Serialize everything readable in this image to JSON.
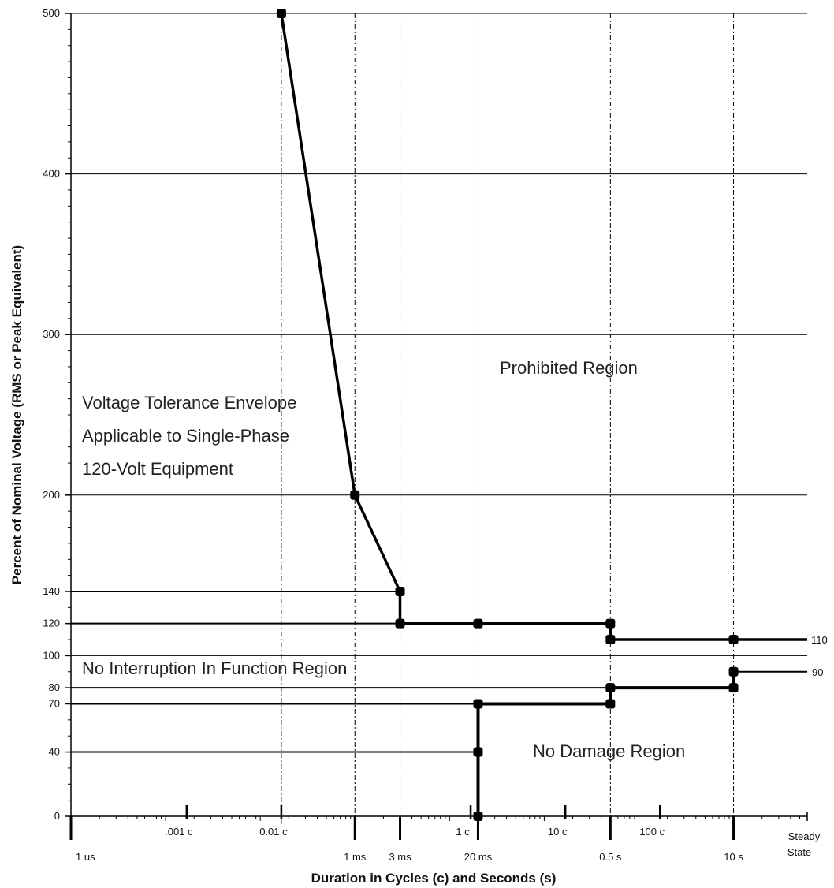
{
  "chart_data": {
    "type": "line",
    "title": "",
    "xlabel": "Duration in Cycles (c) and Seconds (s)",
    "ylabel": "Percent of Nominal Voltage (RMS or Peak Equivalent)",
    "x_scale": "log",
    "x_unit": "seconds",
    "xlim": [
      1e-06,
      60
    ],
    "ylim": [
      0,
      500
    ],
    "y_ticks": [
      0,
      40,
      70,
      80,
      100,
      120,
      140,
      200,
      300,
      400,
      500
    ],
    "y_gridlines": [
      100,
      200,
      300,
      400,
      500
    ],
    "x_ticks_top": [
      {
        "label": ".001 c",
        "x": 1.67e-05
      },
      {
        "label": "0.01 c",
        "x": 0.000167
      },
      {
        "label": "1 c",
        "x": 0.0167
      },
      {
        "label": "10 c",
        "x": 0.167
      },
      {
        "label": "100 c",
        "x": 1.67
      }
    ],
    "x_ticks_bottom": [
      {
        "label": "1 us",
        "x": 1e-06
      },
      {
        "label": "1 ms",
        "x": 0.001
      },
      {
        "label": "3 ms",
        "x": 0.003
      },
      {
        "label": "20 ms",
        "x": 0.02
      },
      {
        "label": "0.5 s",
        "x": 0.5
      },
      {
        "label": "10 s",
        "x": 10
      }
    ],
    "steady_state_label": [
      "Steady",
      "State"
    ],
    "series": [
      {
        "key": "upper",
        "points": [
          [
            0.000167,
            500
          ],
          [
            0.001,
            200
          ],
          [
            0.003,
            140
          ],
          [
            0.003,
            120
          ],
          [
            0.02,
            120
          ],
          [
            0.5,
            120
          ],
          [
            0.5,
            110
          ],
          [
            10,
            110
          ],
          [
            60,
            110
          ]
        ],
        "markers": [
          [
            0.000167,
            500
          ],
          [
            0.001,
            200
          ],
          [
            0.003,
            140
          ],
          [
            0.003,
            120
          ],
          [
            0.02,
            120
          ],
          [
            0.5,
            120
          ],
          [
            0.5,
            110
          ],
          [
            10,
            110
          ]
        ]
      },
      {
        "key": "lower",
        "points": [
          [
            0.02,
            0
          ],
          [
            0.02,
            40
          ],
          [
            0.02,
            70
          ],
          [
            0.5,
            70
          ],
          [
            0.5,
            80
          ],
          [
            10,
            80
          ],
          [
            10,
            90
          ]
        ],
        "markers": [
          [
            0.02,
            0
          ],
          [
            0.02,
            40
          ],
          [
            0.02,
            70
          ],
          [
            0.5,
            70
          ],
          [
            0.5,
            80
          ],
          [
            10,
            80
          ],
          [
            10,
            90
          ]
        ]
      }
    ],
    "level_lines": [
      {
        "y": 140,
        "x_to": 0.003
      },
      {
        "y": 120,
        "x_to": 0.003
      },
      {
        "y": 80,
        "x_to": 0.5
      },
      {
        "y": 70,
        "x_to": 0.02
      },
      {
        "y": 40,
        "x_to": 0.02
      }
    ],
    "steady_lines": [
      {
        "y": 90,
        "x_from": 10,
        "label": "90"
      }
    ],
    "end_labels": [
      {
        "y": 110,
        "label": "110"
      }
    ],
    "drop_lines": [
      0.000167,
      0.001,
      0.003,
      0.02,
      0.5,
      10
    ],
    "annotations": {
      "envelope_lines": [
        "Voltage Tolerance Envelope",
        "Applicable to Single-Phase",
        "120-Volt Equipment"
      ],
      "prohibited": "Prohibited Region",
      "no_interruption": "No Interruption In Function Region",
      "no_damage": "No Damage Region"
    },
    "colors": {
      "line": "#000000",
      "grid": "#000000",
      "text": "#111111"
    }
  }
}
